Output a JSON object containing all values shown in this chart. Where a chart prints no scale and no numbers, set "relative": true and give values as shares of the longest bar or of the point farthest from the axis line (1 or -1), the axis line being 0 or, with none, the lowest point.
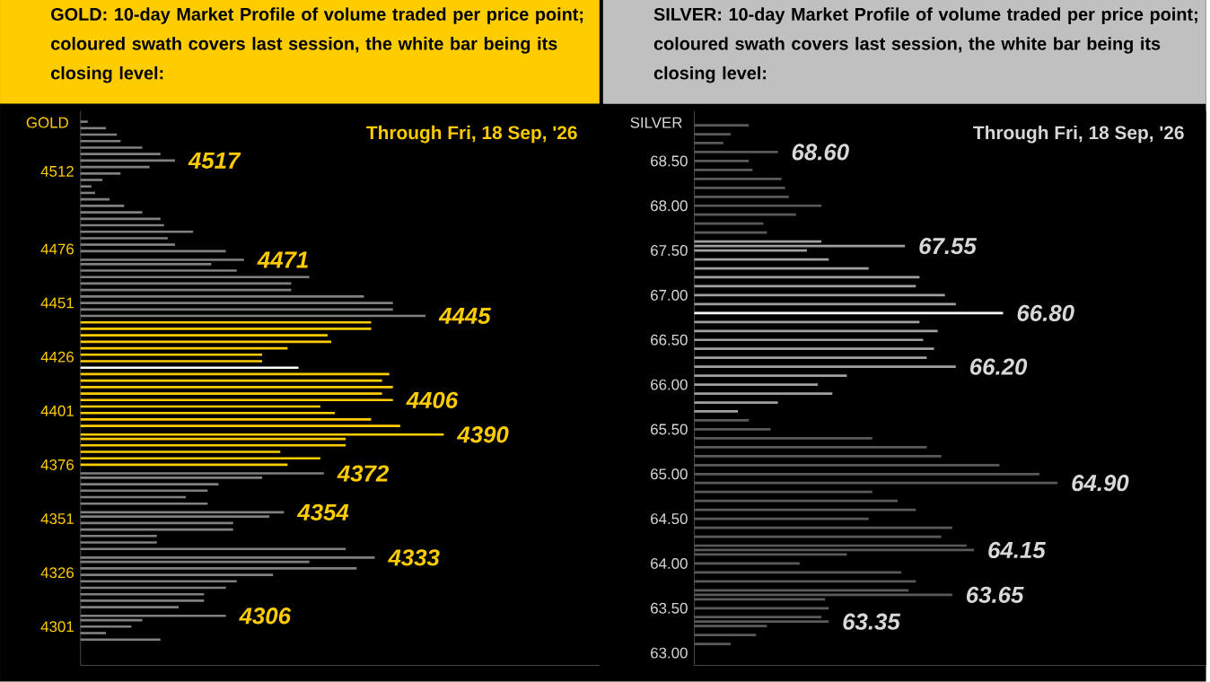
{
  "chart_data": [
    {
      "type": "bar",
      "orientation": "horizontal",
      "relative": true,
      "title": "GOLD:  10-day Market Profile of volume traded per price point; coloured swath covers last session, the white bar being its closing level:",
      "subtitle": "Through Fri, 18 Sep, '26",
      "ylabel": "GOLD",
      "x": [
        4295,
        4298,
        4301,
        4304,
        4306,
        4310,
        4313,
        4316,
        4319,
        4322,
        4325,
        4328,
        4331,
        4333,
        4337,
        4340,
        4343,
        4346,
        4349,
        4352,
        4354,
        4358,
        4361,
        4364,
        4367,
        4370,
        4372,
        4376,
        4379,
        4382,
        4385,
        4388,
        4390,
        4394,
        4397,
        4400,
        4403,
        4406,
        4409,
        4412,
        4415,
        4418,
        4421,
        4424,
        4427,
        4430,
        4433,
        4436,
        4439,
        4442,
        4445,
        4448,
        4451,
        4454,
        4457,
        4460,
        4463,
        4466,
        4469,
        4471,
        4475,
        4478,
        4481,
        4484,
        4487,
        4490,
        4493,
        4496,
        4499,
        4502,
        4505,
        4508,
        4511,
        4514,
        4517,
        4520,
        4523,
        4526,
        4529,
        4532,
        4535
      ],
      "values": [
        0.22,
        0.07,
        0.14,
        0.17,
        0.4,
        0.27,
        0.34,
        0.34,
        0.4,
        0.43,
        0.53,
        0.76,
        0.63,
        0.81,
        0.73,
        0.21,
        0.21,
        0.42,
        0.42,
        0.52,
        0.56,
        0.35,
        0.29,
        0.35,
        0.38,
        0.5,
        0.67,
        0.57,
        0.66,
        0.55,
        0.73,
        0.73,
        1.0,
        0.88,
        0.8,
        0.7,
        0.66,
        0.86,
        0.83,
        0.86,
        0.83,
        0.85,
        0.6,
        0.5,
        0.5,
        0.57,
        0.69,
        0.68,
        0.8,
        0.8,
        0.95,
        0.86,
        0.86,
        0.78,
        0.58,
        0.58,
        0.63,
        0.43,
        0.36,
        0.45,
        0.4,
        0.26,
        0.24,
        0.31,
        0.23,
        0.22,
        0.17,
        0.12,
        0.08,
        0.04,
        0.03,
        0.06,
        0.11,
        0.19,
        0.26,
        0.22,
        0.17,
        0.11,
        0.1,
        0.07,
        0.02
      ],
      "colors": [
        "#808080",
        "#808080",
        "#808080",
        "#808080",
        "#808080",
        "#808080",
        "#808080",
        "#808080",
        "#808080",
        "#808080",
        "#808080",
        "#808080",
        "#808080",
        "#808080",
        "#808080",
        "#808080",
        "#808080",
        "#808080",
        "#808080",
        "#808080",
        "#808080",
        "#808080",
        "#808080",
        "#808080",
        "#808080",
        "#808080",
        "#808080",
        "#ffcc00",
        "#ffcc00",
        "#ffcc00",
        "#ffcc00",
        "#ffcc00",
        "#ffcc00",
        "#ffcc00",
        "#ffcc00",
        "#ffcc00",
        "#ffcc00",
        "#ffcc00",
        "#ffcc00",
        "#ffcc00",
        "#ffcc00",
        "#ffcc00",
        "#ffffff",
        "#ffcc00",
        "#ffcc00",
        "#ffcc00",
        "#ffcc00",
        "#ffcc00",
        "#ffcc00",
        "#ffcc00",
        "#808080",
        "#808080",
        "#808080",
        "#808080",
        "#808080",
        "#808080",
        "#808080",
        "#808080",
        "#808080",
        "#808080",
        "#808080",
        "#808080",
        "#808080",
        "#808080",
        "#808080",
        "#808080",
        "#808080",
        "#808080",
        "#808080",
        "#808080",
        "#808080",
        "#808080",
        "#808080",
        "#808080",
        "#808080",
        "#808080",
        "#808080",
        "#808080",
        "#808080",
        "#808080",
        "#808080"
      ],
      "ylim": [
        4283,
        4540
      ],
      "yticks": [
        4301,
        4326,
        4351,
        4376,
        4401,
        4426,
        4451,
        4476,
        4512
      ],
      "annotations": [
        {
          "text": "4517",
          "x": 0.26,
          "y": 4517
        },
        {
          "text": "4471",
          "x": 0.45,
          "y": 4471
        },
        {
          "text": "4445",
          "x": 0.95,
          "y": 4445
        },
        {
          "text": "4406",
          "x": 0.86,
          "y": 4406
        },
        {
          "text": "4390",
          "x": 1.0,
          "y": 4390
        },
        {
          "text": "4372",
          "x": 0.67,
          "y": 4372
        },
        {
          "text": "4354",
          "x": 0.56,
          "y": 4354
        },
        {
          "text": "4333",
          "x": 0.81,
          "y": 4333
        },
        {
          "text": "4306",
          "x": 0.4,
          "y": 4306
        }
      ]
    },
    {
      "type": "bar",
      "orientation": "horizontal",
      "relative": true,
      "title": "SILVER:  10-day Market Profile of volume traded per price point; coloured swath covers last session, the white bar being its closing level:",
      "subtitle": "Through Fri, 18 Sep, '26",
      "ylabel": "SILVER",
      "x": [
        63.1,
        63.2,
        63.3,
        63.35,
        63.4,
        63.5,
        63.6,
        63.65,
        63.7,
        63.8,
        63.9,
        64.0,
        64.1,
        64.15,
        64.2,
        64.3,
        64.4,
        64.5,
        64.6,
        64.7,
        64.8,
        64.9,
        65.0,
        65.1,
        65.2,
        65.3,
        65.4,
        65.5,
        65.6,
        65.7,
        65.8,
        65.9,
        66.0,
        66.1,
        66.2,
        66.3,
        66.4,
        66.5,
        66.6,
        66.7,
        66.8,
        66.9,
        67.0,
        67.1,
        67.2,
        67.3,
        67.4,
        67.5,
        67.55,
        67.6,
        67.7,
        67.8,
        67.9,
        68.0,
        68.1,
        68.2,
        68.3,
        68.4,
        68.5,
        68.6,
        68.7,
        68.8,
        68.9
      ],
      "values": [
        0.1,
        0.17,
        0.2,
        0.37,
        0.35,
        0.37,
        0.36,
        0.71,
        0.59,
        0.61,
        0.57,
        0.29,
        0.42,
        0.77,
        0.75,
        0.68,
        0.71,
        0.48,
        0.61,
        0.56,
        0.49,
        1.0,
        0.95,
        0.84,
        0.68,
        0.64,
        0.49,
        0.21,
        0.15,
        0.12,
        0.23,
        0.38,
        0.34,
        0.42,
        0.72,
        0.64,
        0.66,
        0.63,
        0.67,
        0.62,
        0.85,
        0.72,
        0.69,
        0.61,
        0.62,
        0.48,
        0.37,
        0.31,
        0.58,
        0.35,
        0.2,
        0.19,
        0.28,
        0.35,
        0.26,
        0.25,
        0.24,
        0.16,
        0.15,
        0.23,
        0.08,
        0.1,
        0.15
      ],
      "colors": [
        "#5a5a5a",
        "#5a5a5a",
        "#5a5a5a",
        "#5a5a5a",
        "#5a5a5a",
        "#5a5a5a",
        "#5a5a5a",
        "#5a5a5a",
        "#5a5a5a",
        "#5a5a5a",
        "#5a5a5a",
        "#5a5a5a",
        "#5a5a5a",
        "#5a5a5a",
        "#5a5a5a",
        "#5a5a5a",
        "#5a5a5a",
        "#5a5a5a",
        "#5a5a5a",
        "#5a5a5a",
        "#5a5a5a",
        "#5a5a5a",
        "#5a5a5a",
        "#5a5a5a",
        "#5a5a5a",
        "#5a5a5a",
        "#5a5a5a",
        "#5a5a5a",
        "#5a5a5a",
        "#a0a0a0",
        "#a0a0a0",
        "#a0a0a0",
        "#a0a0a0",
        "#a0a0a0",
        "#a0a0a0",
        "#a0a0a0",
        "#a0a0a0",
        "#a0a0a0",
        "#a0a0a0",
        "#a0a0a0",
        "#ffffff",
        "#a0a0a0",
        "#a0a0a0",
        "#a0a0a0",
        "#a0a0a0",
        "#a0a0a0",
        "#a0a0a0",
        "#a0a0a0",
        "#a0a0a0",
        "#a0a0a0",
        "#5a5a5a",
        "#5a5a5a",
        "#5a5a5a",
        "#5a5a5a",
        "#5a5a5a",
        "#5a5a5a",
        "#5a5a5a",
        "#5a5a5a",
        "#5a5a5a",
        "#5a5a5a",
        "#5a5a5a",
        "#5a5a5a",
        "#5a5a5a"
      ],
      "ylim": [
        62.86,
        69.06
      ],
      "yticks": [
        {
          "value": 63.0,
          "label": "63.00"
        },
        {
          "value": 63.5,
          "label": "63.50"
        },
        {
          "value": 64.0,
          "label": "64.00"
        },
        {
          "value": 64.5,
          "label": "64.50"
        },
        {
          "value": 65.0,
          "label": "65.00"
        },
        {
          "value": 65.5,
          "label": "65.50"
        },
        {
          "value": 66.0,
          "label": "66.00"
        },
        {
          "value": 66.5,
          "label": "66.50"
        },
        {
          "value": 67.0,
          "label": "67.00"
        },
        {
          "value": 67.5,
          "label": "67.50"
        },
        {
          "value": 68.0,
          "label": "68.00"
        },
        {
          "value": 68.5,
          "label": "68.50"
        }
      ],
      "annotations": [
        {
          "text": "68.60",
          "x": 0.23,
          "y": 68.6
        },
        {
          "text": "67.55",
          "x": 0.58,
          "y": 67.55
        },
        {
          "text": "66.80",
          "x": 0.85,
          "y": 66.8
        },
        {
          "text": "66.20",
          "x": 0.72,
          "y": 66.2
        },
        {
          "text": "64.90",
          "x": 1.0,
          "y": 64.9
        },
        {
          "text": "64.15",
          "x": 0.77,
          "y": 64.15
        },
        {
          "text": "63.65",
          "x": 0.71,
          "y": 63.65
        },
        {
          "text": "63.35",
          "x": 0.37,
          "y": 63.35
        }
      ]
    }
  ]
}
